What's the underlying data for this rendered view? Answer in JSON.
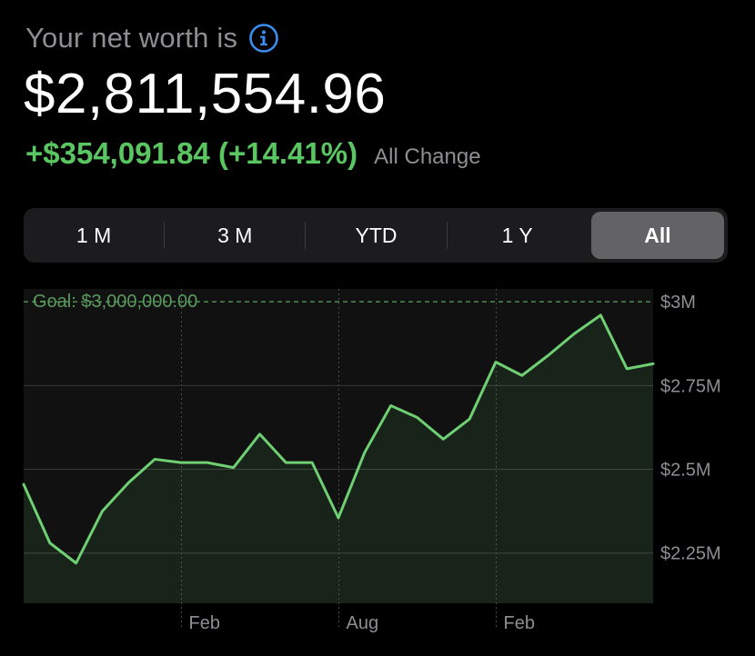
{
  "header": {
    "label": "Your net worth is",
    "info_icon": "info-circle-icon"
  },
  "net_worth": {
    "amount": "$2,811,554.96",
    "change": "+$354,091.84 (+14.41%)",
    "change_label": "All Change"
  },
  "colors": {
    "accent_blue": "#3b8ef0",
    "positive_green": "#5ac662",
    "chart_line": "#6fcf73",
    "goal_line": "#4d8f52",
    "grid": "#3a3a3c"
  },
  "time_ranges": {
    "options": [
      "1 M",
      "3 M",
      "YTD",
      "1 Y",
      "All"
    ],
    "selected": "All"
  },
  "chart_data": {
    "type": "area",
    "goal": {
      "label": "Goal: $3,000,000.00",
      "value": 3000000
    },
    "y_ticks": [
      {
        "label": "$3M",
        "value": 3000000
      },
      {
        "label": "$2.75M",
        "value": 2750000
      },
      {
        "label": "$2.5M",
        "value": 2500000
      },
      {
        "label": "$2.25M",
        "value": 2250000
      }
    ],
    "x_ticks": [
      {
        "label": "Feb",
        "index": 6
      },
      {
        "label": "Aug",
        "index": 12
      },
      {
        "label": "Feb",
        "index": 18
      }
    ],
    "ylim": [
      2100000,
      3060000
    ],
    "series": [
      {
        "values": [
          2455000,
          2280000,
          2220000,
          2375000,
          2460000,
          2530000,
          2520000,
          2520000,
          2505000,
          2605000,
          2520000,
          2520000,
          2355000,
          2550000,
          2690000,
          2655000,
          2590000,
          2650000,
          2820000,
          2780000,
          2840000,
          2905000,
          2960000,
          2800000,
          2815000
        ]
      }
    ]
  }
}
